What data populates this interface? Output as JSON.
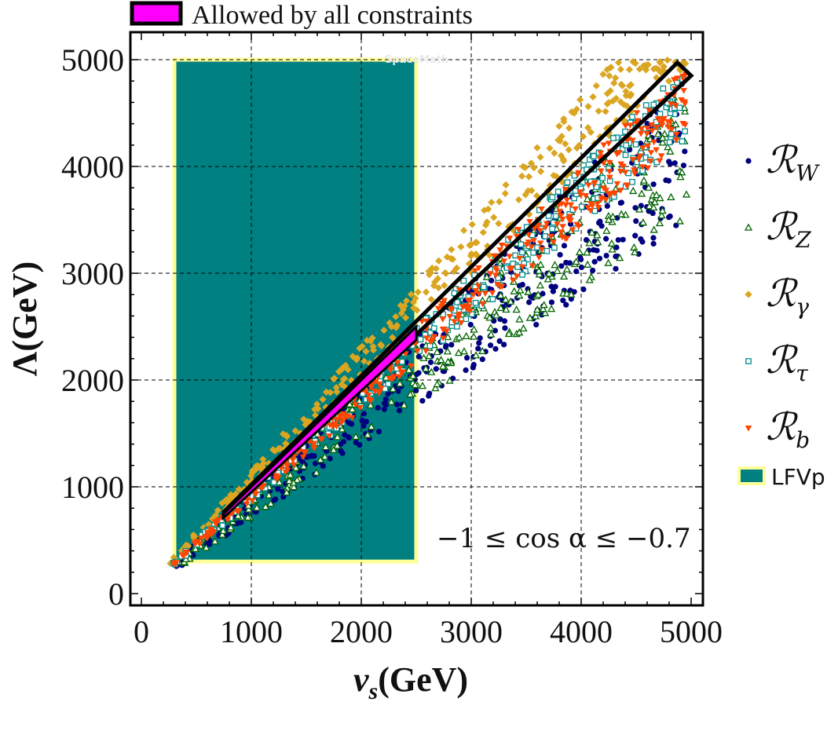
{
  "chart_data": {
    "type": "scatter",
    "title": "",
    "xlabel_main": "v",
    "xlabel_sub": "s",
    "xlabel_unit": "(GeV)",
    "ylabel": "Λ(GeV)",
    "xlim": [
      0,
      5000
    ],
    "ylim": [
      0,
      5000
    ],
    "xticks": [
      0,
      1000,
      2000,
      3000,
      4000,
      5000
    ],
    "yticks": [
      0,
      1000,
      2000,
      3000,
      4000,
      5000
    ],
    "xtick_labels": [
      "0",
      "1000",
      "2000",
      "3000",
      "4000",
      "5000"
    ],
    "ytick_labels": [
      "0",
      "1000",
      "2000",
      "3000",
      "4000",
      "5000"
    ],
    "grid": true,
    "annotation": "−1 ≤ cos α ≤ −0.7",
    "top_legend": {
      "label": "Allowed by all constraints",
      "color": "#ff00ff"
    },
    "watermark": "SpaceMath",
    "lfvp_region": {
      "label": "LFVp",
      "x": [
        300,
        2500
      ],
      "y": [
        300,
        5000
      ],
      "fill": "#008080",
      "edge": "#ffff99"
    },
    "allowed_band": {
      "x": [
        750,
        2500
      ],
      "lambda_over_vs": [
        0.95,
        1.0
      ],
      "color": "#ff00ff"
    },
    "black_band": {
      "x": [
        750,
        5000
      ],
      "lambda_over_vs": [
        0.97,
        1.02
      ]
    },
    "series": [
      {
        "name": "R",
        "sub": "W",
        "marker": "circle",
        "color": "#000080",
        "ratio_range": [
          0.7,
          0.98
        ],
        "sampled_points": 420
      },
      {
        "name": "R",
        "sub": "Z",
        "marker": "triangle-open",
        "color": "#006400",
        "ratio_range": [
          0.71,
          0.97
        ],
        "sampled_points": 330
      },
      {
        "name": "R",
        "sub": "γ",
        "marker": "diamond",
        "color": "#daa520",
        "ratio_range": [
          1.0,
          1.16
        ],
        "sampled_points": 330
      },
      {
        "name": "R",
        "sub": "τ",
        "marker": "square-open",
        "color": "#008b8b",
        "ratio_range": [
          0.86,
          1.0
        ],
        "sampled_points": 330
      },
      {
        "name": "R",
        "sub": "b",
        "marker": "triangle-down",
        "color": "#ff4500",
        "ratio_range": [
          0.86,
          1.0
        ],
        "sampled_points": 380
      }
    ],
    "legend": [
      {
        "name": "R",
        "sub": "W"
      },
      {
        "name": "R",
        "sub": "Z"
      },
      {
        "name": "R",
        "sub": "γ"
      },
      {
        "name": "R",
        "sub": "τ"
      },
      {
        "name": "R",
        "sub": "b"
      },
      {
        "name": "LFVp"
      }
    ]
  }
}
